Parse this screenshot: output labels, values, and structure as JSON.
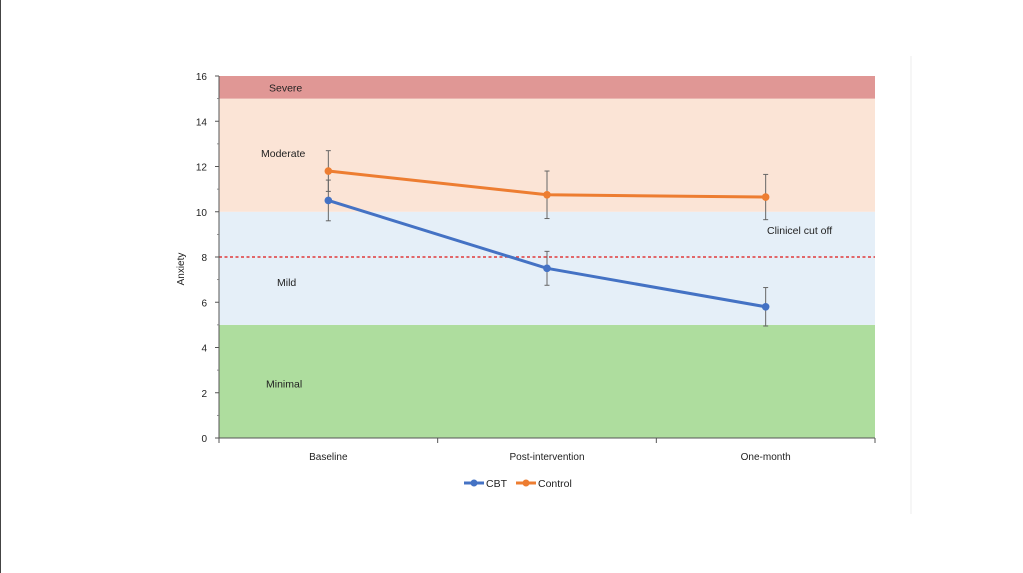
{
  "chart_data": {
    "type": "line",
    "title": "",
    "xlabel": "",
    "ylabel": "Anxiety",
    "ylim": [
      0,
      16
    ],
    "yticks": [
      0,
      2,
      4,
      6,
      8,
      10,
      12,
      14,
      16
    ],
    "categories": [
      "Baseline",
      "Post-intervention",
      "One-month"
    ],
    "series": [
      {
        "name": "CBT",
        "color": "#4472c4",
        "values": [
          10.5,
          7.5,
          5.8
        ],
        "error": [
          0.9,
          0.75,
          0.85
        ]
      },
      {
        "name": "Control",
        "color": "#ed7d31",
        "values": [
          11.8,
          10.75,
          10.65
        ],
        "error": [
          0.9,
          1.05,
          1.0
        ]
      }
    ],
    "bands": [
      {
        "label": "Minimal",
        "from": 0,
        "to": 5,
        "color": "#aedd9e"
      },
      {
        "label": "Mild",
        "from": 5,
        "to": 10,
        "color": "#e5eff8"
      },
      {
        "label": "Moderate",
        "from": 10,
        "to": 15,
        "color": "#fbe4d6"
      },
      {
        "label": "Severe",
        "from": 15,
        "to": 16,
        "color": "#e09795"
      }
    ],
    "reference_line": {
      "label": "Clinicel cut off",
      "value": 8,
      "color": "#e03a3a"
    },
    "legend_position": "bottom",
    "grid": false
  }
}
